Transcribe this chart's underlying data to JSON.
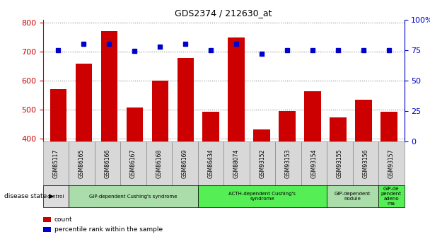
{
  "title": "GDS2374 / 212630_at",
  "samples": [
    "GSM85117",
    "GSM86165",
    "GSM86166",
    "GSM86167",
    "GSM86168",
    "GSM86169",
    "GSM86434",
    "GSM88074",
    "GSM93152",
    "GSM93153",
    "GSM93154",
    "GSM93155",
    "GSM93156",
    "GSM93157"
  ],
  "counts": [
    570,
    657,
    770,
    508,
    600,
    678,
    492,
    748,
    432,
    496,
    564,
    472,
    534,
    492
  ],
  "percentiles": [
    75,
    80,
    80,
    74,
    78,
    80,
    75,
    80,
    72,
    75,
    75,
    75,
    75,
    75
  ],
  "bar_color": "#cc0000",
  "dot_color": "#0000cc",
  "ylim_left": [
    390,
    810
  ],
  "ylim_right": [
    0,
    100
  ],
  "yticks_left": [
    400,
    500,
    600,
    700,
    800
  ],
  "yticks_right": [
    0,
    25,
    50,
    75,
    100
  ],
  "groups": [
    {
      "label": "control",
      "start": 0,
      "end": 1,
      "color": "#dddddd"
    },
    {
      "label": "GIP-dependent Cushing's syndrome",
      "start": 1,
      "end": 6,
      "color": "#aaddaa"
    },
    {
      "label": "ACTH-dependent Cushing's\nsyndrome",
      "start": 6,
      "end": 11,
      "color": "#55ee55"
    },
    {
      "label": "GIP-dependent\nnodule",
      "start": 11,
      "end": 13,
      "color": "#aaddaa"
    },
    {
      "label": "GIP-de\npendent\nadeno\nma",
      "start": 13,
      "end": 14,
      "color": "#55ee55"
    }
  ],
  "disease_state_label": "disease state",
  "legend_count_label": "count",
  "legend_percentile_label": "percentile rank within the sample",
  "grid_color": "#888888",
  "background_color": "#ffffff",
  "ticklabel_color_left": "#cc0000",
  "ticklabel_color_right": "#0000cc",
  "xticklabel_bg": "#d8d8d8"
}
